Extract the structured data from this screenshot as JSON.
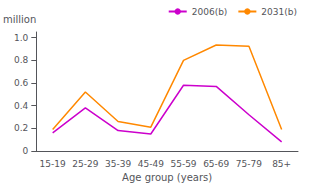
{
  "chart_data": {
    "type": "line",
    "xlabel": "Age group (years)",
    "ylabel": "million",
    "categories": [
      "15-19",
      "25-29",
      "35-39",
      "45-49",
      "55-59",
      "65-69",
      "75-79",
      "85+"
    ],
    "series": [
      {
        "name": "2006(b)",
        "color": "#cc00cc",
        "values": [
          0.16,
          0.38,
          0.18,
          0.15,
          0.58,
          0.57,
          0.32,
          0.08
        ]
      },
      {
        "name": "2031(b)",
        "color": "#ff8800",
        "values": [
          0.19,
          0.52,
          0.26,
          0.21,
          0.8,
          0.935,
          0.925,
          0.19
        ]
      }
    ],
    "ylim": [
      0,
      1.05
    ],
    "yticks": [
      0,
      0.2,
      0.4,
      0.6,
      0.8,
      {
        "value": 1.0,
        "label": "1.0"
      }
    ],
    "legend": "upper right",
    "grid": false
  }
}
